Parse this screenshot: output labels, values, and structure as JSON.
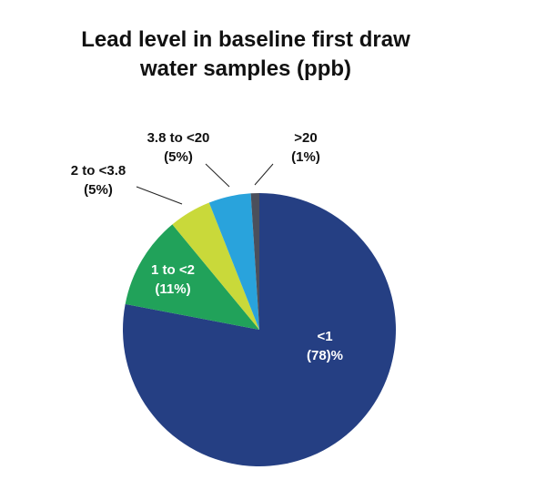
{
  "chart_data": {
    "type": "pie",
    "title": "Lead level in baseline first draw water samples (ppb)",
    "categories": [
      "<1",
      "1 to <2",
      "2 to <3.8",
      "3.8 to <20",
      ">20"
    ],
    "values": [
      78,
      11,
      5,
      5,
      1
    ],
    "value_labels": [
      "(78)%",
      "(11%)",
      "(5%)",
      "(5%)",
      "(1%)"
    ],
    "colors": [
      "#253f83",
      "#21a25a",
      "#c9d93a",
      "#29a3dc",
      "#4b4f5b"
    ]
  }
}
